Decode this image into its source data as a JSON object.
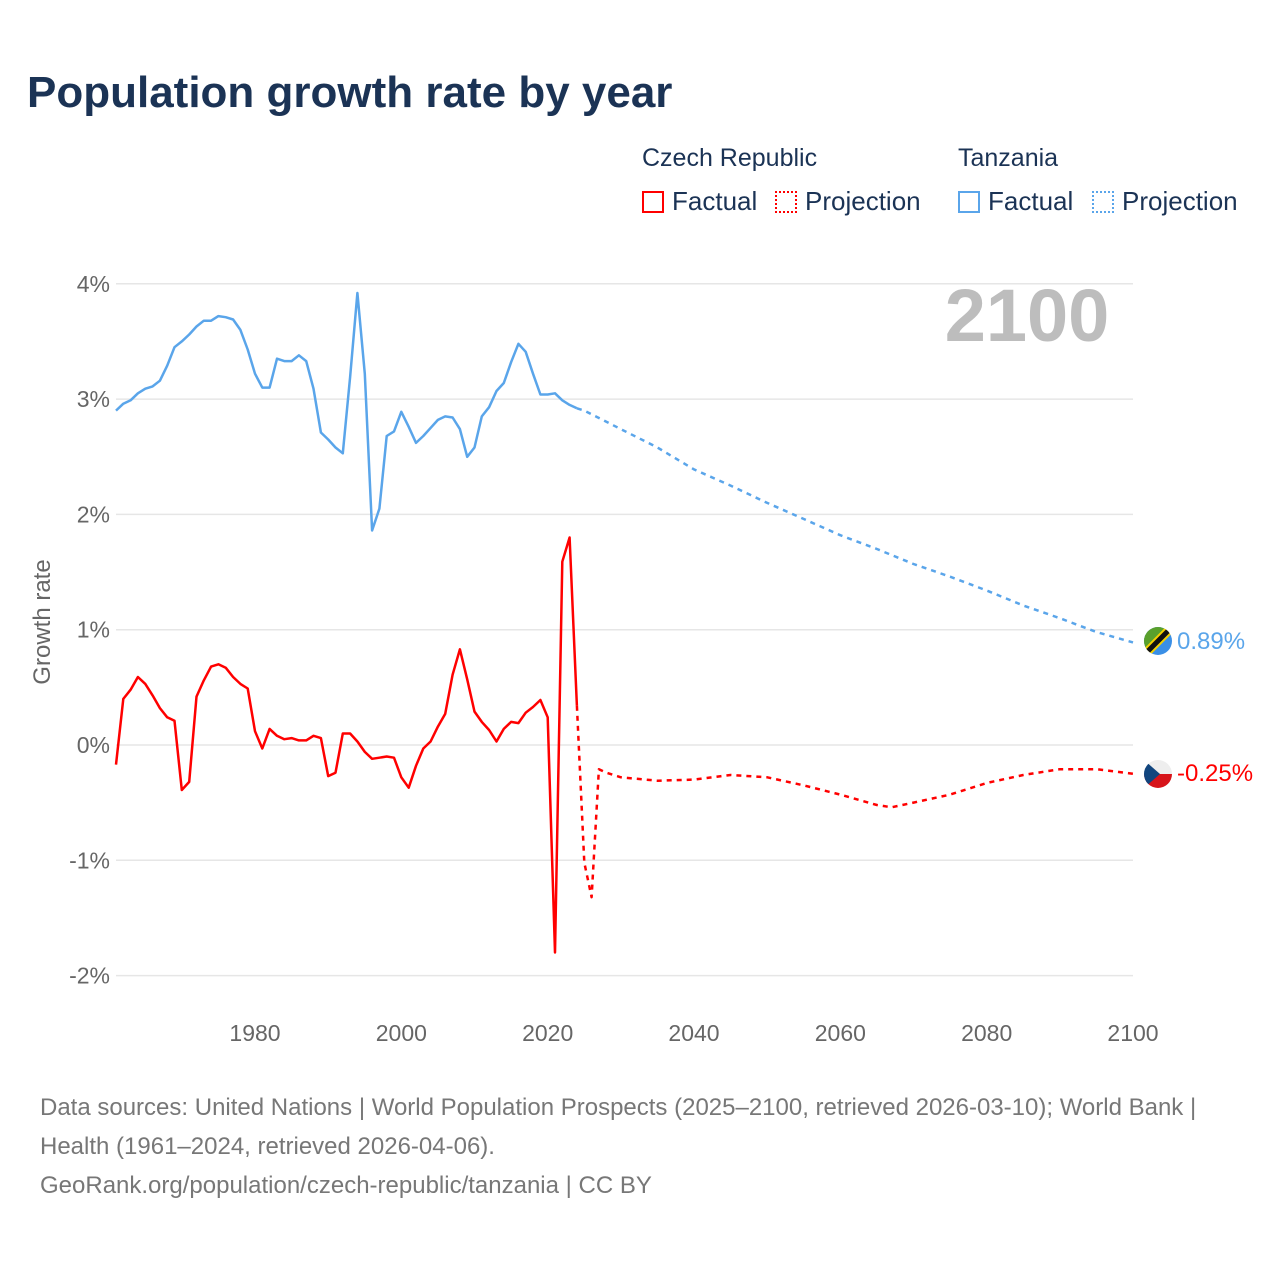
{
  "title": "Population growth rate by year",
  "legend": {
    "groups": [
      {
        "name": "Czech Republic",
        "color": "#ff0000",
        "factual": "Factual",
        "projection": "Projection"
      },
      {
        "name": "Tanzania",
        "color": "#5aa5ea",
        "factual": "Factual",
        "projection": "Projection"
      }
    ]
  },
  "year_label": "2100",
  "end_labels": {
    "tanzania": "0.89%",
    "czech": "-0.25%"
  },
  "footer": {
    "sources": "Data sources: United Nations | World Population Prospects (2025–2100, retrieved 2026-03-10); World Bank | Health (1961–2024, retrieved 2026-04-06).",
    "link": "GeoRank.org/population/czech-republic/tanzania | CC BY"
  },
  "chart_data": {
    "type": "line",
    "title": "Population growth rate by year",
    "xlabel": "",
    "ylabel": "Growth rate",
    "xlim": [
      1961,
      2100
    ],
    "ylim": [
      -2.2,
      4.2
    ],
    "yticks": [
      4,
      3,
      2,
      1,
      0,
      -1,
      -2
    ],
    "ytick_labels": [
      "4%",
      "3%",
      "2%",
      "1%",
      "0%",
      "-1%",
      "-2%"
    ],
    "xticks": [
      1980,
      2000,
      2020,
      2040,
      2060,
      2080,
      2100
    ],
    "xtick_labels": [
      "1980",
      "2000",
      "2020",
      "2040",
      "2060",
      "2080",
      "2100"
    ],
    "grid": true,
    "legend_position": "top-right",
    "series": [
      {
        "name": "Tanzania Factual",
        "color": "#5aa5ea",
        "dashed": false,
        "start": 1961,
        "values": [
          2.9,
          2.96,
          2.99,
          3.05,
          3.09,
          3.11,
          3.16,
          3.29,
          3.45,
          3.5,
          3.56,
          3.63,
          3.68,
          3.68,
          3.72,
          3.71,
          3.69,
          3.6,
          3.43,
          3.22,
          3.1,
          3.1,
          3.35,
          3.33,
          3.33,
          3.38,
          3.33,
          3.09,
          2.71,
          2.65,
          2.58,
          2.53,
          3.19,
          3.92,
          3.22,
          1.86,
          2.05,
          2.68,
          2.72,
          2.89,
          2.76,
          2.62,
          2.68,
          2.75,
          2.82,
          2.85,
          2.84,
          2.74,
          2.5,
          2.58,
          2.85,
          2.93,
          3.07,
          3.14,
          3.32,
          3.48,
          3.41,
          3.22,
          3.04,
          3.04,
          3.05,
          2.99,
          2.95,
          2.92
        ]
      },
      {
        "name": "Tanzania Projection",
        "color": "#5aa5ea",
        "dashed": true,
        "x": [
          2024,
          2025,
          2030,
          2035,
          2040,
          2045,
          2050,
          2055,
          2060,
          2065,
          2070,
          2075,
          2080,
          2085,
          2090,
          2095,
          2100
        ],
        "values": [
          2.92,
          2.9,
          2.74,
          2.58,
          2.39,
          2.25,
          2.1,
          1.96,
          1.82,
          1.7,
          1.57,
          1.46,
          1.34,
          1.21,
          1.1,
          0.98,
          0.89
        ]
      },
      {
        "name": "Czech Republic Factual",
        "color": "#ff0000",
        "dashed": false,
        "start": 1961,
        "values": [
          -0.17,
          0.4,
          0.48,
          0.59,
          0.53,
          0.43,
          0.32,
          0.24,
          0.21,
          -0.39,
          -0.32,
          0.42,
          0.56,
          0.68,
          0.7,
          0.67,
          0.59,
          0.53,
          0.49,
          0.12,
          -0.03,
          0.14,
          0.08,
          0.05,
          0.06,
          0.04,
          0.04,
          0.08,
          0.06,
          -0.27,
          -0.24,
          0.1,
          0.1,
          0.03,
          -0.06,
          -0.12,
          -0.11,
          -0.1,
          -0.11,
          -0.28,
          -0.37,
          -0.18,
          -0.03,
          0.03,
          0.16,
          0.27,
          0.61,
          0.83,
          0.57,
          0.29,
          0.2,
          0.13,
          0.03,
          0.14,
          0.2,
          0.19,
          0.28,
          0.33,
          0.39,
          0.24,
          -1.8,
          1.59,
          1.8,
          0.34
        ]
      },
      {
        "name": "Czech Republic Projection",
        "color": "#ff0000",
        "dashed": true,
        "x": [
          2024,
          2025,
          2026,
          2027,
          2028,
          2030,
          2035,
          2040,
          2045,
          2050,
          2055,
          2060,
          2065,
          2067,
          2070,
          2075,
          2080,
          2085,
          2090,
          2095,
          2100
        ],
        "values": [
          0.34,
          -1.02,
          -1.32,
          -0.21,
          -0.24,
          -0.28,
          -0.31,
          -0.3,
          -0.26,
          -0.28,
          -0.35,
          -0.43,
          -0.52,
          -0.54,
          -0.5,
          -0.43,
          -0.33,
          -0.26,
          -0.21,
          -0.21,
          -0.25
        ]
      }
    ]
  }
}
